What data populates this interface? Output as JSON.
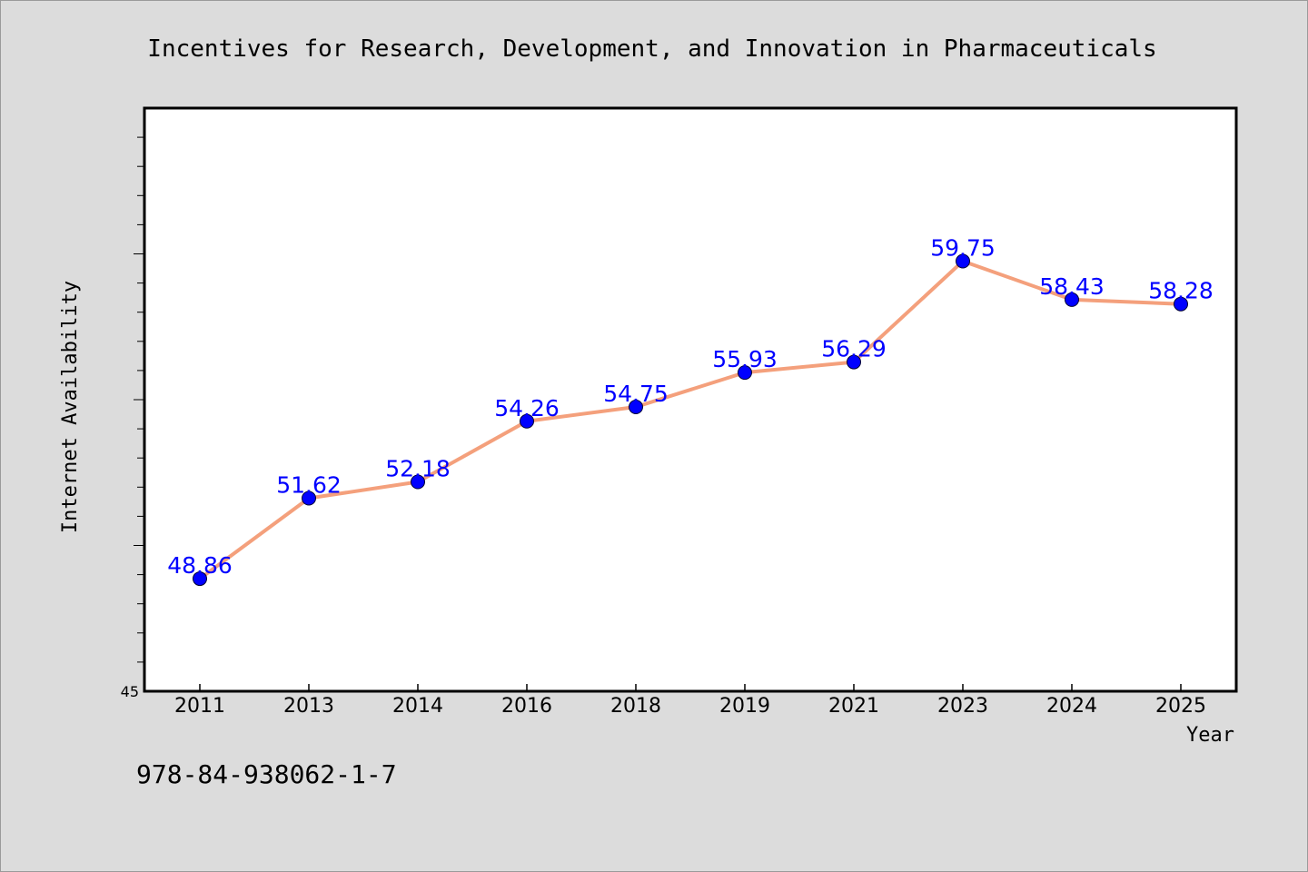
{
  "chart_data": {
    "type": "line",
    "title": "Incentives for Research, Development, and Innovation in Pharmaceuticals",
    "xlabel": "Year",
    "ylabel": "Internet Availability",
    "categories": [
      "2011",
      "2013",
      "2014",
      "2016",
      "2018",
      "2019",
      "2021",
      "2023",
      "2024",
      "2025"
    ],
    "values": [
      48.86,
      51.62,
      52.18,
      54.26,
      54.75,
      55.93,
      56.29,
      59.75,
      58.43,
      58.28
    ],
    "data_labels": [
      "48.86",
      "51.62",
      "52.18",
      "54.26",
      "54.75",
      "55.93",
      "56.29",
      "59.75",
      "58.43",
      "58.28"
    ],
    "ylim": [
      45,
      65
    ],
    "y_tick_labels": [
      "45"
    ],
    "grid": false,
    "legend": "none",
    "line_color": "#f4a07c",
    "marker_color": "#0000ff",
    "label_color": "#0000ff"
  },
  "footer_text": "978-84-938062-1-7"
}
